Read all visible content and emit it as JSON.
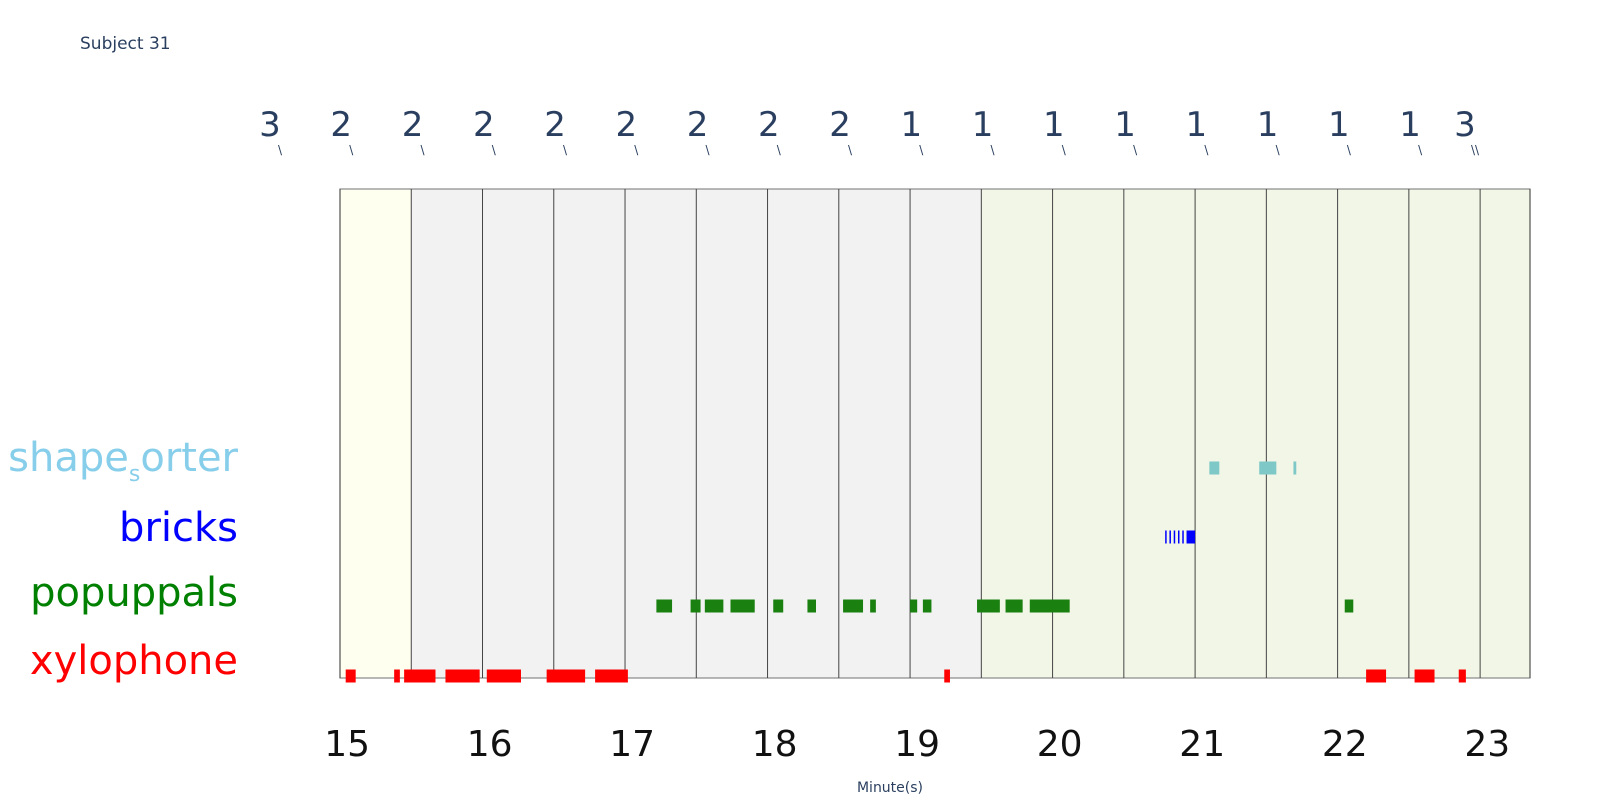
{
  "title": "Subject 31",
  "chart_data": {
    "type": "timeline",
    "xlabel": "Minute(s)",
    "xlim": [
      14.95,
      23.3
    ],
    "x_ticks": [
      15,
      16,
      17,
      18,
      19,
      20,
      21,
      22,
      23
    ],
    "top_ticks": [
      "3",
      "2",
      "2",
      "2",
      "2",
      "2",
      "2",
      "2",
      "2",
      "1",
      "1",
      "1",
      "1",
      "1",
      "1",
      "1",
      "1",
      "3"
    ],
    "phases": [
      {
        "start": 14.95,
        "end": 15.45,
        "color": "#fffff0"
      },
      {
        "start": 15.45,
        "end": 19.45,
        "color": "#f2f2f2"
      },
      {
        "start": 19.45,
        "end": 23.3,
        "color": "#f2f6e6"
      }
    ],
    "boundaries": [
      14.95,
      15.45,
      15.95,
      16.45,
      16.95,
      17.45,
      17.95,
      18.45,
      18.95,
      19.45,
      19.95,
      20.45,
      20.95,
      21.45,
      21.95,
      22.45,
      22.95,
      23.3
    ],
    "rows": [
      {
        "label_main": "shape",
        "label_sub": "s",
        "label_rest": "orter",
        "color": "#87ceeb",
        "bar_color": "#7ec8c8",
        "events": [
          [
            21.05,
            21.12
          ],
          [
            21.4,
            21.52
          ],
          [
            21.64,
            21.66
          ]
        ]
      },
      {
        "label": "bricks",
        "color": "#0000ff",
        "bar_color": "#0000ff",
        "events": [
          [
            20.74,
            20.75
          ],
          [
            20.77,
            20.78
          ],
          [
            20.8,
            20.81
          ],
          [
            20.83,
            20.84
          ],
          [
            20.86,
            20.87
          ],
          [
            20.89,
            20.95
          ]
        ]
      },
      {
        "label": "popuppals",
        "color": "#008000",
        "bar_color": "#1a8010",
        "events": [
          [
            17.17,
            17.28
          ],
          [
            17.41,
            17.48
          ],
          [
            17.51,
            17.64
          ],
          [
            17.69,
            17.86
          ],
          [
            17.99,
            18.06
          ],
          [
            18.23,
            18.29
          ],
          [
            18.48,
            18.62
          ],
          [
            18.67,
            18.71
          ],
          [
            18.95,
            19.0
          ],
          [
            19.04,
            19.1
          ],
          [
            19.42,
            19.58
          ],
          [
            19.62,
            19.74
          ],
          [
            19.79,
            20.07
          ],
          [
            22.0,
            22.06
          ]
        ]
      },
      {
        "label": "xylophone",
        "color": "#ff0000",
        "bar_color": "#ff0000",
        "events": [
          [
            14.99,
            15.06
          ],
          [
            15.33,
            15.37
          ],
          [
            15.4,
            15.62
          ],
          [
            15.69,
            15.93
          ],
          [
            15.98,
            16.22
          ],
          [
            16.4,
            16.67
          ],
          [
            16.74,
            16.97
          ],
          [
            19.19,
            19.23
          ],
          [
            22.15,
            22.29
          ],
          [
            22.49,
            22.63
          ],
          [
            22.8,
            22.85
          ]
        ]
      }
    ]
  }
}
